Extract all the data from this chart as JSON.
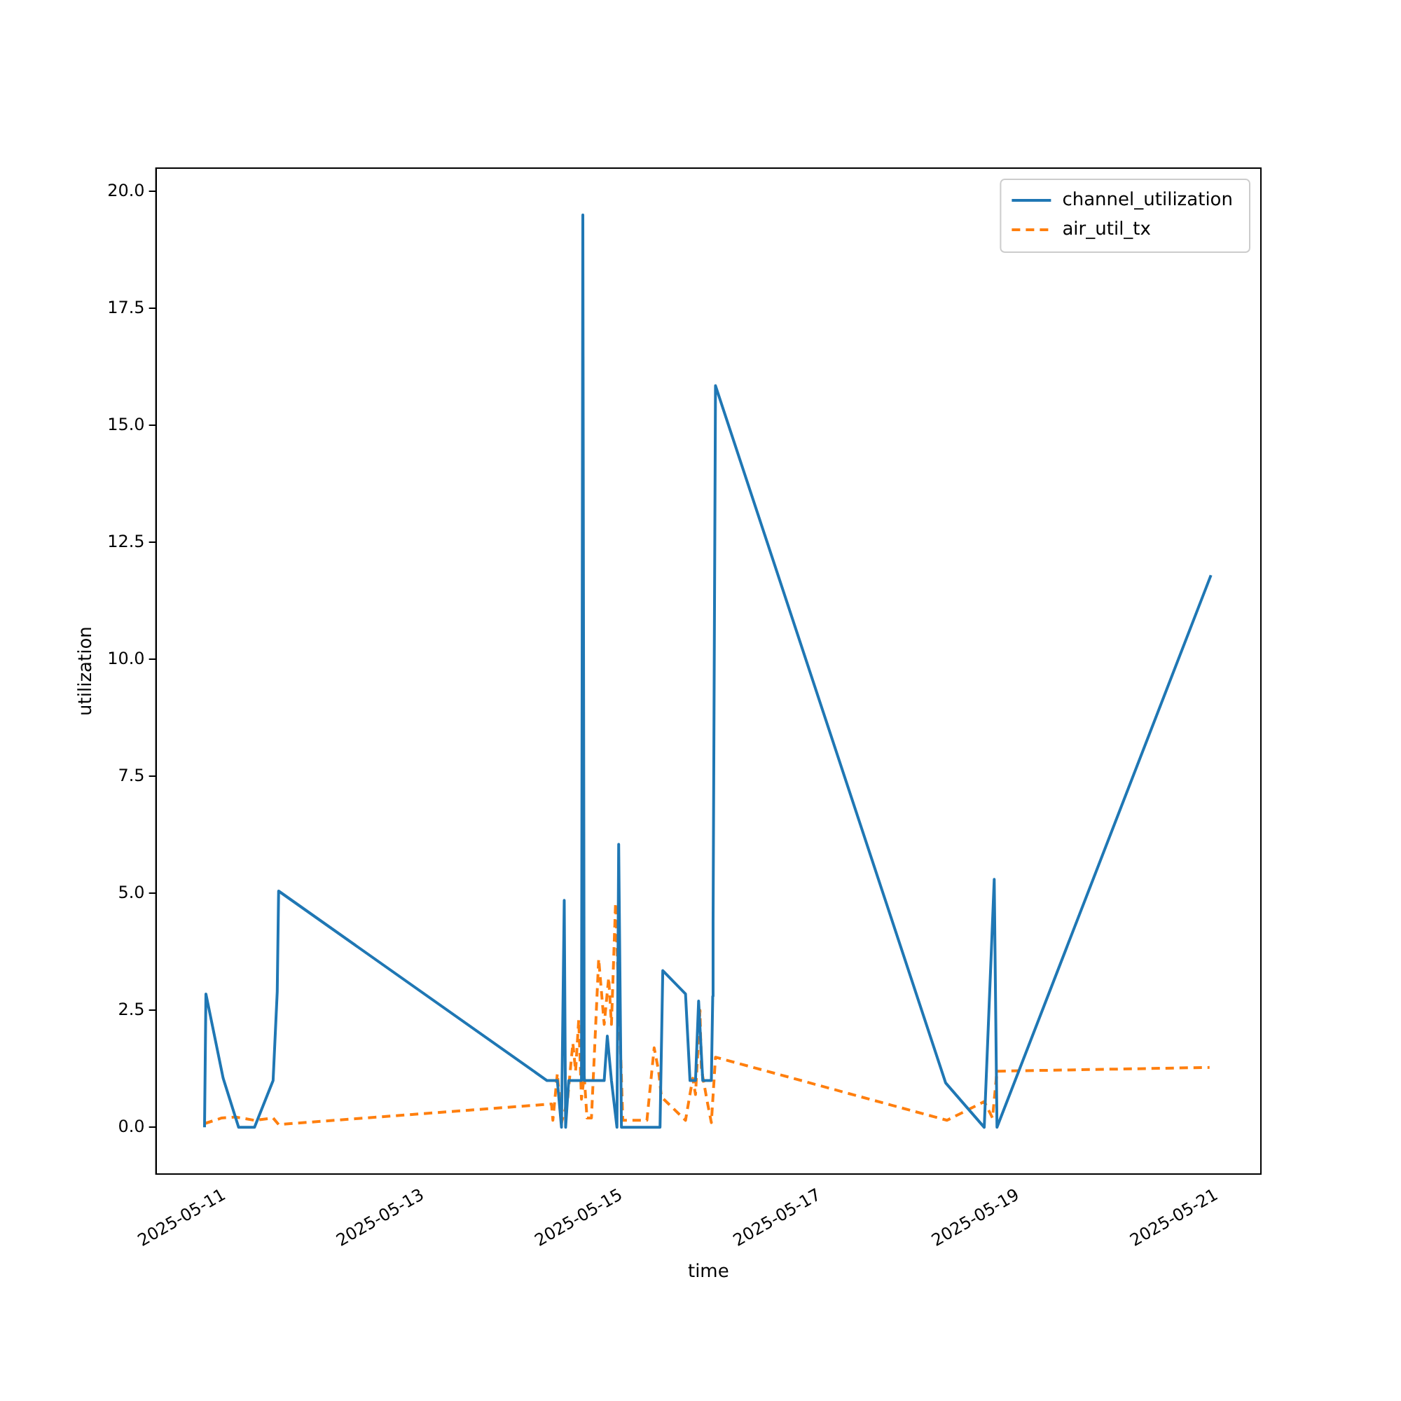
{
  "chart_data": {
    "type": "line",
    "xlabel": "time",
    "ylabel": "utilization",
    "legend": "top right",
    "grid": false,
    "marker": "none",
    "xlim": [
      "2025-05-10T07:25",
      "2025-05-21T10:40"
    ],
    "xticks": [
      "2025-05-11",
      "2025-05-13",
      "2025-05-15",
      "2025-05-17",
      "2025-05-19",
      "2025-05-21"
    ],
    "ylim": [
      -1,
      20.5
    ],
    "yticks": [
      {
        "value": 0,
        "label": "0.0"
      },
      {
        "value": 2.5,
        "label": "2.5"
      },
      {
        "value": 5,
        "label": "5.0"
      },
      {
        "value": 7.5,
        "label": "7.5"
      },
      {
        "value": 10,
        "label": "10.0"
      },
      {
        "value": 12.5,
        "label": "12.5"
      },
      {
        "value": 15,
        "label": "15.0"
      },
      {
        "value": 17.5,
        "label": "17.5"
      },
      {
        "value": 20,
        "label": "20.0"
      }
    ],
    "series": [
      {
        "name": "channel_utilization",
        "color": "#1f77b4",
        "line_style": "solid",
        "x": [
          "2025-05-10T19:10",
          "2025-05-10T19:30",
          "2025-05-10T23:40",
          "2025-05-11T03:25",
          "2025-05-11T07:15",
          "2025-05-11T11:45",
          "2025-05-11T12:45",
          "2025-05-11T13:05",
          "2025-05-14T06:00",
          "2025-05-14T08:30",
          "2025-05-14T09:30",
          "2025-05-14T10:10",
          "2025-05-14T10:30",
          "2025-05-14T11:15",
          "2025-05-14T14:20",
          "2025-05-14T14:40",
          "2025-05-14T15:00",
          "2025-05-14T19:50",
          "2025-05-14T20:35",
          "2025-05-14T21:35",
          "2025-05-14T22:55",
          "2025-05-14T23:20",
          "2025-05-15T00:00",
          "2025-05-15T09:20",
          "2025-05-15T10:00",
          "2025-05-15T15:30",
          "2025-05-15T16:35",
          "2025-05-15T17:55",
          "2025-05-15T18:40",
          "2025-05-15T19:40",
          "2025-05-15T21:45",
          "2025-05-15T22:05",
          "2025-05-15T22:10",
          "2025-05-15T22:45",
          "2025-05-18T06:25",
          "2025-05-18T15:45",
          "2025-05-18T18:10",
          "2025-05-18T18:50",
          "2025-05-20T22:35"
        ],
        "values": [
          0,
          2.85,
          1.05,
          0,
          0,
          1,
          2.9,
          5.05,
          1,
          1,
          0,
          4.85,
          0,
          1,
          1,
          19.5,
          1,
          1,
          1.95,
          1,
          0,
          6.05,
          0,
          0,
          3.35,
          2.85,
          1,
          1,
          2.7,
          1,
          1,
          2.8,
          4.4,
          15.85,
          0.95,
          0,
          5.3,
          0,
          11.8
        ]
      },
      {
        "name": "air_util_tx",
        "color": "#ff7f0e",
        "line_style": "dashed",
        "x": [
          "2025-05-10T19:10",
          "2025-05-10T23:20",
          "2025-05-11T02:45",
          "2025-05-11T07:15",
          "2025-05-11T11:45",
          "2025-05-11T13:05",
          "2025-05-14T07:05",
          "2025-05-14T07:25",
          "2025-05-14T08:30",
          "2025-05-14T09:30",
          "2025-05-14T10:55",
          "2025-05-14T12:15",
          "2025-05-14T12:55",
          "2025-05-14T13:40",
          "2025-05-14T14:20",
          "2025-05-14T15:00",
          "2025-05-14T15:40",
          "2025-05-14T16:45",
          "2025-05-14T18:30",
          "2025-05-14T19:50",
          "2025-05-14T20:55",
          "2025-05-14T21:35",
          "2025-05-14T22:35",
          "2025-05-15T00:20",
          "2025-05-15T02:45",
          "2025-05-15T06:10",
          "2025-05-15T07:55",
          "2025-05-15T09:00",
          "2025-05-15T09:40",
          "2025-05-15T15:30",
          "2025-05-15T17:15",
          "2025-05-15T17:55",
          "2025-05-15T19:00",
          "2025-05-15T19:20",
          "2025-05-15T20:45",
          "2025-05-15T21:45",
          "2025-05-15T22:45",
          "2025-05-18T06:45",
          "2025-05-18T15:45",
          "2025-05-18T17:45",
          "2025-05-18T18:50",
          "2025-05-20T22:15"
        ],
        "values": [
          0.08,
          0.2,
          0.22,
          0.15,
          0.2,
          0.06,
          0.5,
          0.15,
          1.15,
          0.1,
          0.55,
          1.8,
          1.2,
          2.3,
          0.6,
          1.1,
          0.2,
          0.2,
          3.6,
          2.2,
          3.2,
          2.2,
          4.8,
          0.15,
          0.15,
          0.15,
          1.7,
          1.2,
          0.65,
          0.15,
          1.05,
          0.7,
          2.5,
          1.25,
          0.55,
          0.1,
          1.5,
          0.15,
          0.55,
          0.2,
          1.2,
          1.28
        ]
      }
    ]
  }
}
